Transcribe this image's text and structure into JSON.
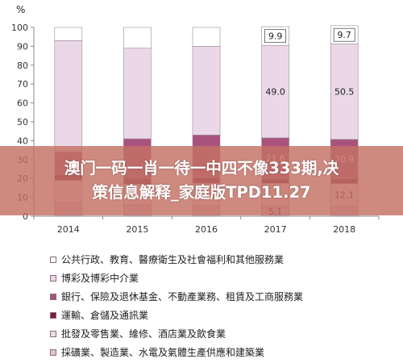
{
  "banner": {
    "line1": "澳门一码一肖一待一中四不像333期,决",
    "line2": "策信息解释_家庭版TPD11.27"
  },
  "chart_data": {
    "type": "bar",
    "stacked": true,
    "ylabel": "%",
    "ylim": [
      0,
      100
    ],
    "yticks": [
      0,
      10,
      20,
      30,
      40,
      50,
      60,
      70,
      80,
      90,
      100
    ],
    "categories": [
      "2014",
      "2015",
      "2016",
      "2017",
      "2018"
    ],
    "grid": false,
    "legend_position": "bottom",
    "series": [
      {
        "name": "採礦業、製造業、水電及氣體生產供應和建築業",
        "color": "#dfc4cf",
        "values": [
          7.0,
          6.0,
          5.5,
          5.1,
          5.2
        ]
      },
      {
        "name": "批發及零售業、維修、酒店業及飲食業",
        "color": "#ecdde4",
        "values": [
          12.0,
          11.0,
          12.0,
          12.3,
          12.1
        ]
      },
      {
        "name": "運輸、倉儲及通訊業",
        "color": "#7a1f3a",
        "values": [
          3.0,
          3.0,
          3.0,
          2.5,
          2.5
        ]
      },
      {
        "name": "銀行、保險及退休基金、不動產業務、租賃及工商服務業",
        "color": "#a8527e",
        "values": [
          12.0,
          21.0,
          22.5,
          21.6,
          20.9
        ]
      },
      {
        "name": "博彩及博彩中介業",
        "color": "#ead8e8",
        "values": [
          59.0,
          48.0,
          47.0,
          49.0,
          50.5
        ]
      },
      {
        "name": "公共行政、教育、醫療衛生及社會福利和其他服務業",
        "color": "#ffffff",
        "values": [
          7.0,
          11.0,
          10.0,
          9.9,
          9.7
        ]
      }
    ],
    "data_labels": [
      {
        "category": "2017",
        "series": 5,
        "text": "9.9"
      },
      {
        "category": "2018",
        "series": 5,
        "text": "9.7"
      },
      {
        "category": "2017",
        "series": 4,
        "text": "49.0"
      },
      {
        "category": "2018",
        "series": 4,
        "text": "50.5"
      },
      {
        "category": "2017",
        "series": 3,
        "text": "21.6"
      },
      {
        "category": "2018",
        "series": 3,
        "text": "20.9"
      },
      {
        "category": "2018",
        "series": 1,
        "text": "12.1"
      },
      {
        "category": "2017",
        "series": 0,
        "text": "5.1"
      }
    ]
  },
  "legend": {
    "items": [
      {
        "label": "公共行政、教育、醫療衛生及社會福利和其他服務業",
        "color": "#ffffff"
      },
      {
        "label": "博彩及博彩中介業",
        "color": "#ead8e8"
      },
      {
        "label": "銀行、保險及退休基金、不動產業務、租賃及工商服務業",
        "color": "#a8527e"
      },
      {
        "label": "運輸、倉儲及通訊業",
        "color": "#7a1f3a"
      },
      {
        "label": "批發及零售業、維修、酒店業及飲食業",
        "color": "#ecdde4"
      },
      {
        "label": "採礦業、製造業、水電及氣體生產供應和建築業",
        "color": "#dfc4cf"
      }
    ]
  }
}
